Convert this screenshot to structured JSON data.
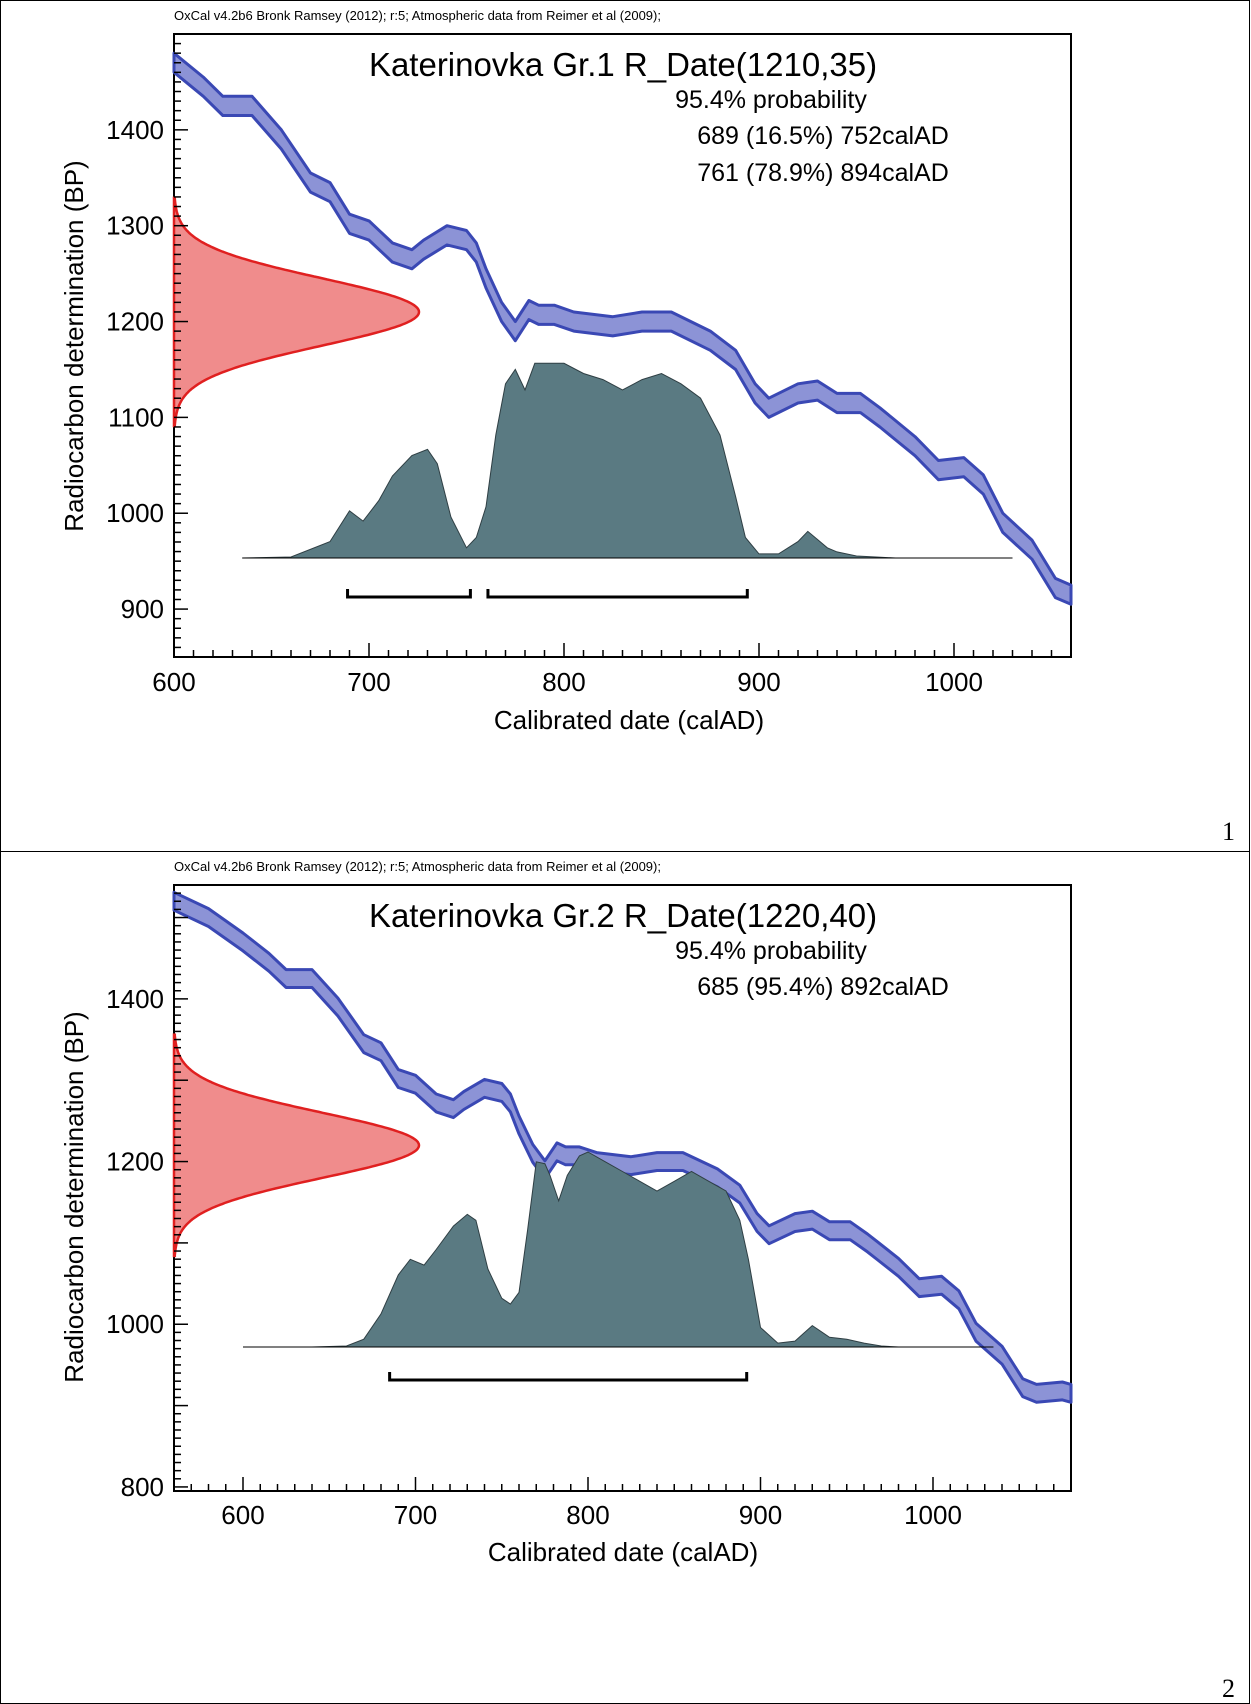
{
  "chart_data": [
    {
      "type": "area",
      "header": "OxCal v4.2b6 Bronk Ramsey (2012); r:5; Atmospheric data from Reimer et al (2009);",
      "title": "Katerinovka Gr.1 R_Date(1210,35)",
      "probability_label": "95.4% probability",
      "ranges": [
        "689 (16.5%) 752calAD",
        "761 (78.9%) 894calAD"
      ],
      "range_bars": [
        [
          689,
          752
        ],
        [
          761,
          894
        ]
      ],
      "xlabel": "Calibrated date (calAD)",
      "ylabel": "Radiocarbon determination (BP)",
      "xlim": [
        600,
        1060
      ],
      "ylim": [
        850,
        1500
      ],
      "x_ticks": [
        600,
        700,
        800,
        900,
        1000
      ],
      "y_ticks": [
        900,
        1000,
        1100,
        1200,
        1300,
        1400
      ],
      "panel_number": "1",
      "radiocarbon_date": {
        "mean": 1210,
        "sigma": 35
      },
      "calibration_curve": {
        "x": [
          600,
          615,
          625,
          640,
          655,
          670,
          680,
          690,
          700,
          712,
          722,
          728,
          740,
          750,
          755,
          760,
          768,
          775,
          782,
          787,
          795,
          805,
          825,
          840,
          855,
          875,
          888,
          898,
          905,
          920,
          930,
          940,
          952,
          962,
          968,
          980,
          992,
          1005,
          1015,
          1025,
          1040,
          1052,
          1060
        ],
        "bp": [
          1470,
          1445,
          1425,
          1425,
          1390,
          1345,
          1335,
          1302,
          1295,
          1272,
          1265,
          1275,
          1290,
          1285,
          1272,
          1245,
          1210,
          1190,
          1212,
          1207,
          1207,
          1200,
          1195,
          1200,
          1200,
          1180,
          1160,
          1125,
          1110,
          1125,
          1128,
          1115,
          1115,
          1100,
          1090,
          1070,
          1045,
          1048,
          1030,
          990,
          962,
          922,
          915
        ],
        "half_width_bp": 10,
        "color": "#3a48b4",
        "fill": "#8c93d6"
      },
      "calibrated_distribution": {
        "x": [
          635,
          660,
          680,
          690,
          697,
          705,
          712,
          722,
          730,
          735,
          742,
          750,
          755,
          760,
          765,
          770,
          775,
          780,
          785,
          790,
          800,
          810,
          820,
          830,
          840,
          850,
          860,
          870,
          880,
          888,
          893,
          900,
          910,
          920,
          925,
          930,
          935,
          940,
          950,
          960,
          970,
          980,
          1030
        ],
        "height": [
          0,
          0.005,
          0.08,
          0.23,
          0.18,
          0.28,
          0.4,
          0.5,
          0.53,
          0.46,
          0.2,
          0.05,
          0.1,
          0.25,
          0.6,
          0.85,
          0.92,
          0.82,
          0.95,
          0.95,
          0.95,
          0.9,
          0.87,
          0.82,
          0.87,
          0.9,
          0.85,
          0.78,
          0.6,
          0.3,
          0.1,
          0.02,
          0.02,
          0.08,
          0.13,
          0.09,
          0.05,
          0.03,
          0.01,
          0.005,
          0,
          0,
          0
        ],
        "color": "#5a7a82"
      },
      "colors": {
        "curve_stroke": "#3a48b4",
        "curve_fill": "#8c93d6",
        "date_fill": "#f08c8c",
        "date_stroke": "#e02020",
        "distribution_fill": "#5a7a82"
      }
    },
    {
      "type": "area",
      "header": "OxCal v4.2b6 Bronk Ramsey (2012); r:5; Atmospheric data from Reimer et al (2009);",
      "title": "Katerinovka Gr.2 R_Date(1220,40)",
      "probability_label": "95.4% probability",
      "ranges": [
        "685 (95.4%) 892calAD"
      ],
      "range_bars": [
        [
          685,
          892
        ]
      ],
      "xlabel": "Calibrated date (calAD)",
      "ylabel": "Radiocarbon determination (BP)",
      "xlim": [
        560,
        1080
      ],
      "ylim": [
        795,
        1540
      ],
      "x_ticks": [
        600,
        700,
        800,
        900,
        1000
      ],
      "y_ticks": [
        800,
        1000,
        1200,
        1400
      ],
      "panel_number": "2",
      "radiocarbon_date": {
        "mean": 1220,
        "sigma": 40
      },
      "calibration_curve": {
        "x": [
          560,
          580,
          600,
          615,
          625,
          640,
          655,
          670,
          680,
          690,
          700,
          712,
          722,
          728,
          740,
          750,
          755,
          760,
          768,
          775,
          782,
          787,
          795,
          805,
          825,
          840,
          855,
          875,
          888,
          898,
          905,
          920,
          930,
          940,
          952,
          962,
          968,
          980,
          992,
          1005,
          1015,
          1025,
          1040,
          1052,
          1060,
          1075,
          1080
        ],
        "bp": [
          1520,
          1500,
          1470,
          1445,
          1425,
          1425,
          1390,
          1345,
          1335,
          1302,
          1295,
          1272,
          1265,
          1275,
          1290,
          1285,
          1272,
          1245,
          1210,
          1190,
          1212,
          1207,
          1207,
          1200,
          1195,
          1200,
          1200,
          1180,
          1160,
          1125,
          1110,
          1125,
          1128,
          1115,
          1115,
          1100,
          1090,
          1070,
          1045,
          1048,
          1030,
          990,
          962,
          922,
          915,
          918,
          915
        ],
        "half_width_bp": 11,
        "color": "#3a48b4",
        "fill": "#8c93d6"
      },
      "calibrated_distribution": {
        "x": [
          600,
          640,
          660,
          670,
          680,
          690,
          697,
          705,
          712,
          722,
          730,
          735,
          742,
          750,
          755,
          760,
          765,
          770,
          775,
          778,
          783,
          788,
          795,
          800,
          810,
          820,
          830,
          840,
          850,
          860,
          870,
          880,
          888,
          893,
          900,
          910,
          920,
          925,
          930,
          935,
          940,
          950,
          960,
          970,
          980,
          1035
        ],
        "height": [
          0,
          0,
          0.005,
          0.04,
          0.17,
          0.37,
          0.45,
          0.42,
          0.5,
          0.62,
          0.68,
          0.65,
          0.4,
          0.25,
          0.22,
          0.28,
          0.6,
          0.95,
          0.94,
          0.88,
          0.75,
          0.88,
          0.98,
          1.0,
          0.95,
          0.9,
          0.85,
          0.8,
          0.85,
          0.9,
          0.85,
          0.8,
          0.65,
          0.45,
          0.1,
          0.02,
          0.03,
          0.07,
          0.11,
          0.08,
          0.05,
          0.04,
          0.02,
          0.005,
          0,
          0
        ],
        "color": "#5a7a82"
      },
      "colors": {
        "curve_stroke": "#3a48b4",
        "curve_fill": "#8c93d6",
        "date_fill": "#f08c8c",
        "date_stroke": "#e02020",
        "distribution_fill": "#5a7a82"
      }
    }
  ]
}
